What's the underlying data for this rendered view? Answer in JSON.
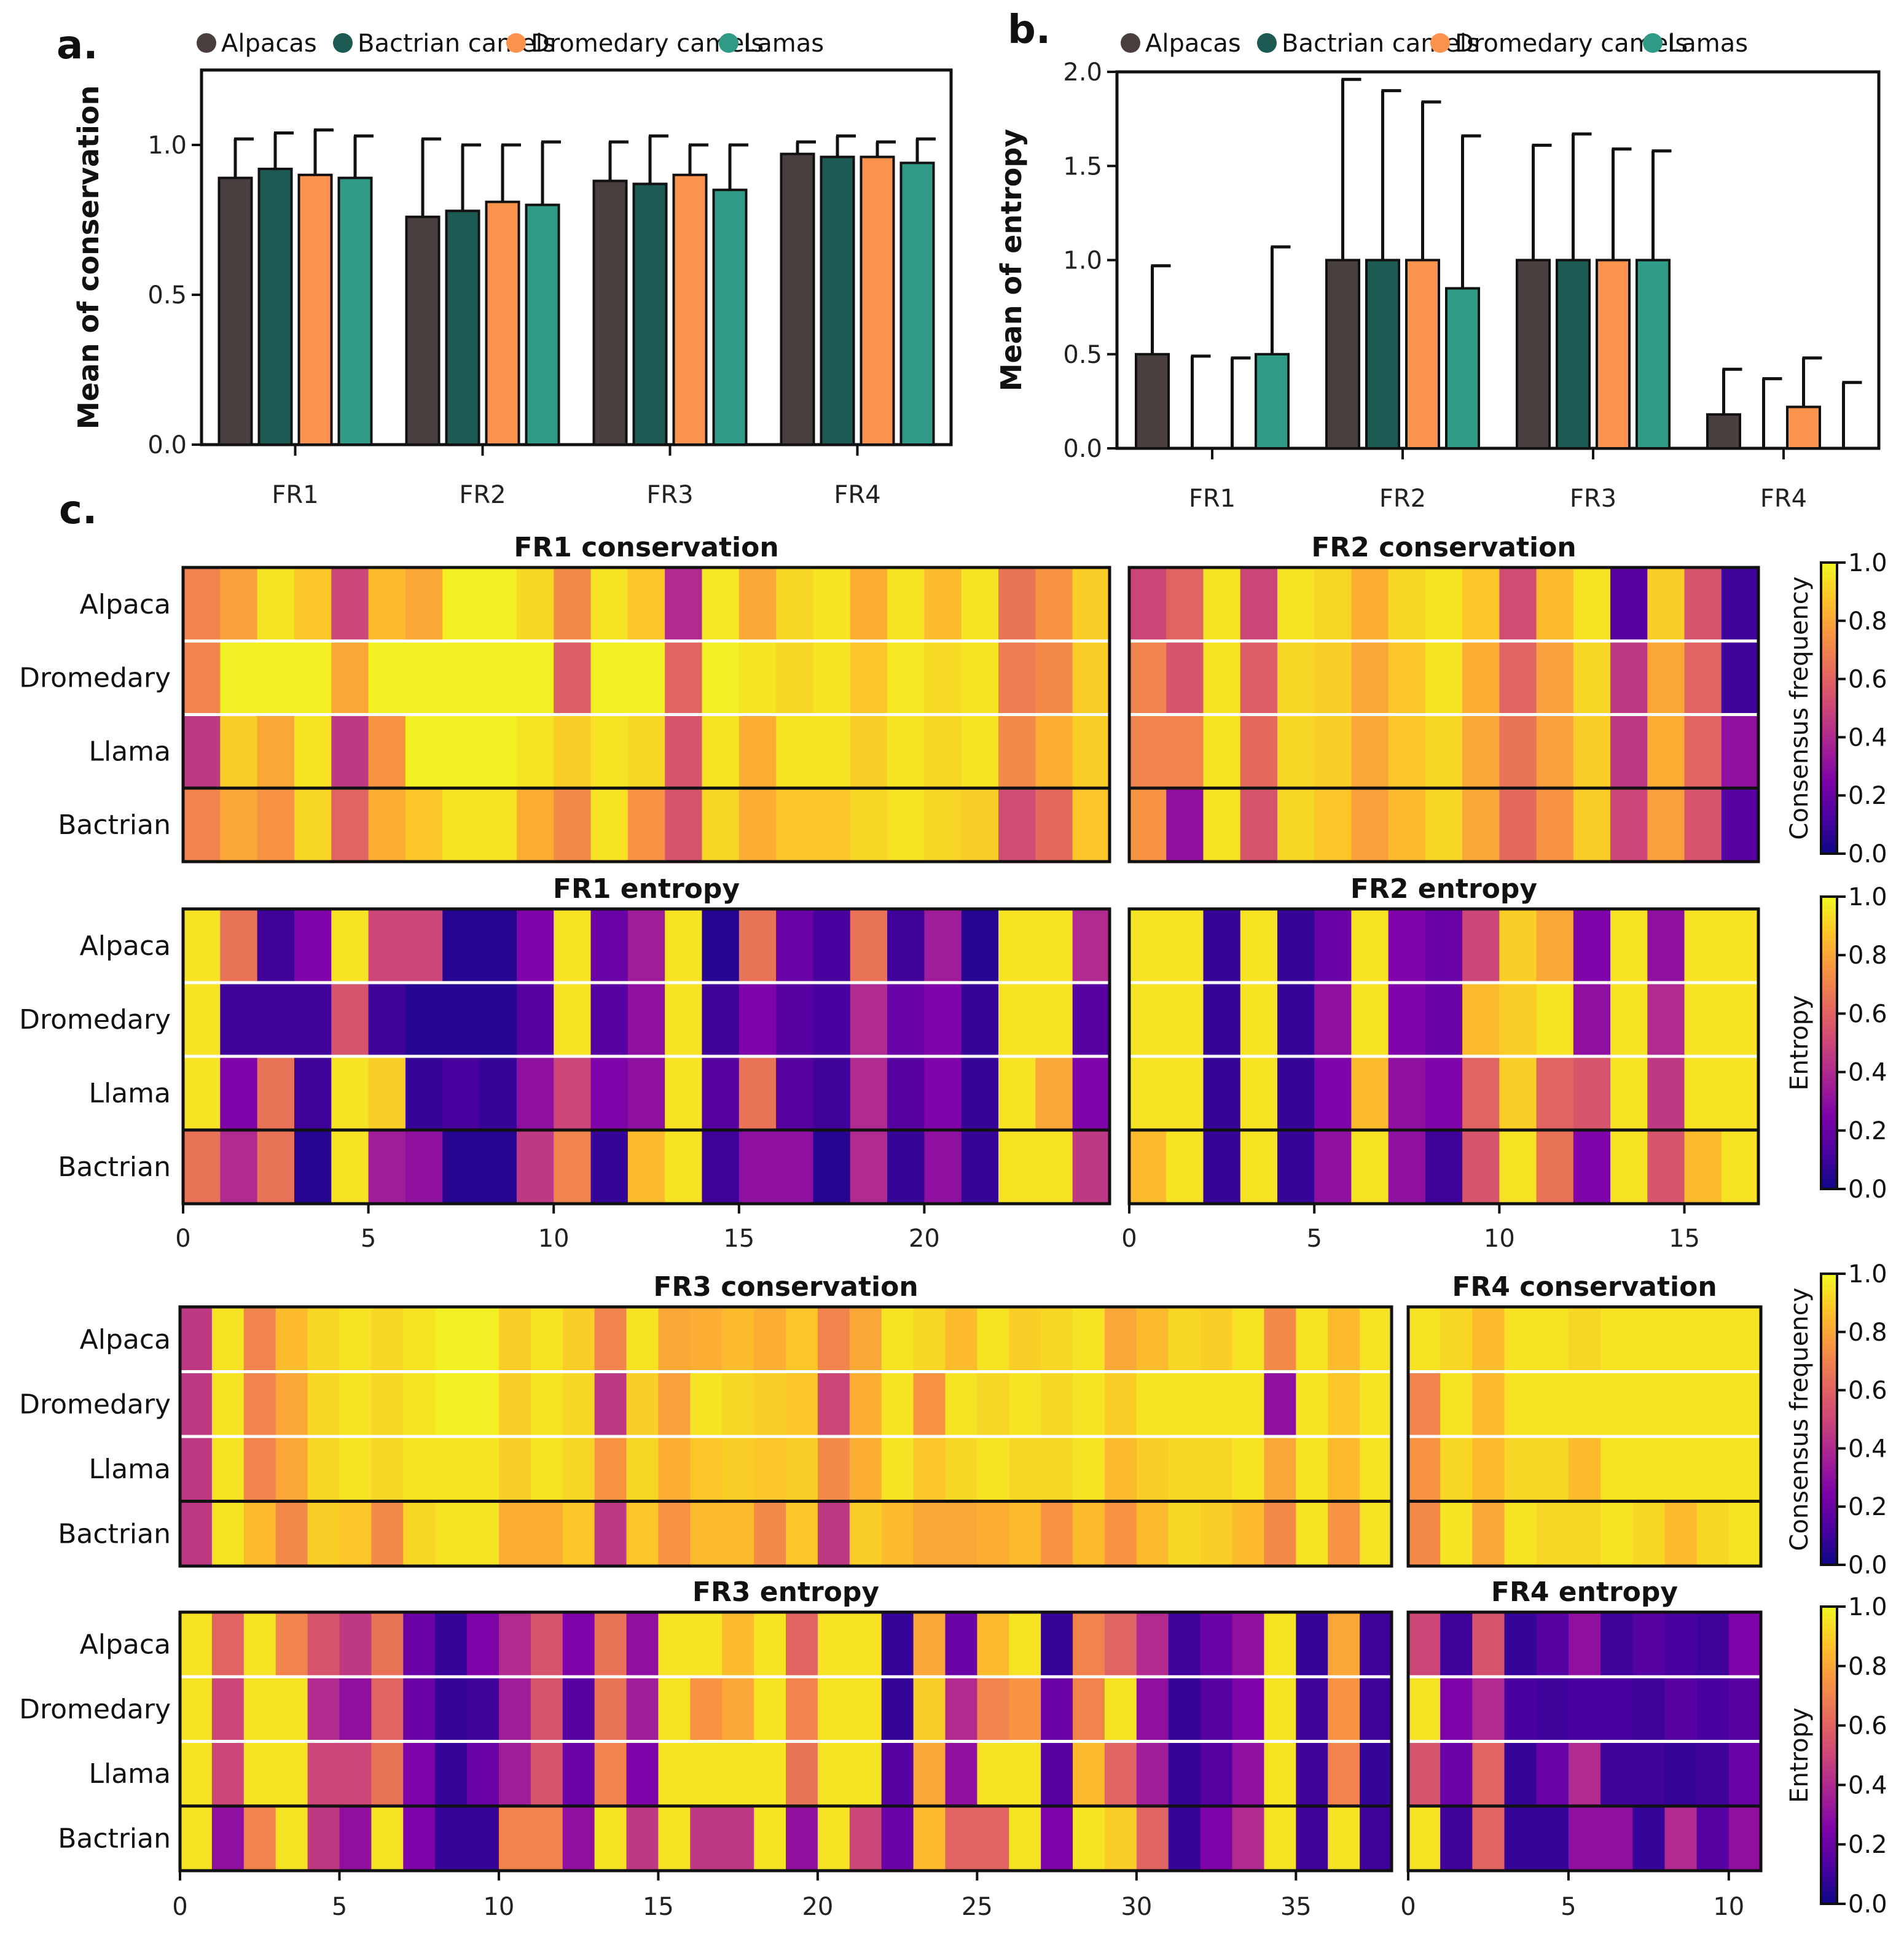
{
  "panel_labels": {
    "a": "a.",
    "b": "b.",
    "c": "c."
  },
  "colors": {
    "Alpacas": "#4a3f3f",
    "Bactrian camels": "#1d5a53",
    "Dromedary camels": "#fb934d",
    "Lamas": "#2f9a86"
  },
  "colormap": "plasma",
  "chart_data": [
    {
      "id": "a",
      "type": "bar",
      "title": "",
      "xlabel": "",
      "ylabel": "Mean of conservation",
      "ylim": [
        0,
        1.25
      ],
      "yticks": [
        0.0,
        0.5,
        1.0
      ],
      "categories": [
        "FR1",
        "FR2",
        "FR3",
        "FR4"
      ],
      "series": [
        {
          "name": "Alpacas",
          "values": [
            0.89,
            0.76,
            0.88,
            0.97
          ],
          "errors": [
            0.13,
            0.26,
            0.13,
            0.04
          ]
        },
        {
          "name": "Bactrian camels",
          "values": [
            0.92,
            0.78,
            0.87,
            0.96
          ],
          "errors": [
            0.12,
            0.22,
            0.16,
            0.07
          ]
        },
        {
          "name": "Dromedary camels",
          "values": [
            0.9,
            0.81,
            0.9,
            0.96
          ],
          "errors": [
            0.15,
            0.19,
            0.1,
            0.05
          ]
        },
        {
          "name": "Lamas",
          "values": [
            0.89,
            0.8,
            0.85,
            0.94
          ],
          "errors": [
            0.14,
            0.21,
            0.15,
            0.08
          ]
        }
      ]
    },
    {
      "id": "b",
      "type": "bar",
      "title": "",
      "xlabel": "",
      "ylabel": "Mean of entropy",
      "ylim": [
        0,
        2.0
      ],
      "yticks": [
        0.0,
        0.5,
        1.0,
        1.5,
        2.0
      ],
      "categories": [
        "FR1",
        "FR2",
        "FR3",
        "FR4"
      ],
      "series": [
        {
          "name": "Alpacas",
          "values": [
            0.5,
            1.0,
            1.0,
            0.18
          ],
          "errors": [
            0.47,
            0.96,
            0.61,
            0.24
          ]
        },
        {
          "name": "Bactrian camels",
          "values": [
            0.0,
            1.0,
            1.0,
            0.0
          ],
          "errors": [
            0.49,
            0.9,
            0.67,
            0.37
          ]
        },
        {
          "name": "Dromedary camels",
          "values": [
            0.0,
            1.0,
            1.0,
            0.22
          ],
          "errors": [
            0.48,
            0.84,
            0.59,
            0.26
          ]
        },
        {
          "name": "Lamas",
          "values": [
            0.5,
            0.85,
            1.0,
            0.0
          ],
          "errors": [
            0.57,
            0.81,
            0.58,
            0.35
          ]
        }
      ]
    },
    {
      "id": "c-fr1-conservation",
      "type": "heatmap",
      "title": "FR1 conservation",
      "rows": [
        "Alpaca",
        "Dromedary",
        "Llama",
        "Bactrian"
      ],
      "values": [
        [
          0.7,
          0.78,
          0.95,
          0.88,
          0.5,
          0.85,
          0.8,
          0.98,
          0.98,
          0.92,
          0.72,
          0.95,
          0.88,
          0.4,
          0.96,
          0.8,
          0.92,
          0.95,
          0.82,
          0.95,
          0.85,
          0.95,
          0.65,
          0.75,
          0.9
        ],
        [
          0.7,
          0.98,
          0.98,
          0.98,
          0.8,
          0.98,
          0.98,
          0.98,
          0.98,
          0.98,
          0.58,
          0.98,
          0.98,
          0.6,
          0.98,
          0.95,
          0.92,
          0.95,
          0.88,
          0.96,
          0.93,
          0.95,
          0.68,
          0.72,
          0.9
        ],
        [
          0.45,
          0.9,
          0.8,
          0.95,
          0.45,
          0.75,
          0.98,
          0.98,
          0.98,
          0.95,
          0.9,
          0.95,
          0.92,
          0.55,
          0.95,
          0.82,
          0.95,
          0.95,
          0.9,
          0.95,
          0.92,
          0.95,
          0.72,
          0.82,
          0.9
        ],
        [
          0.7,
          0.8,
          0.75,
          0.92,
          0.6,
          0.82,
          0.88,
          0.95,
          0.95,
          0.82,
          0.72,
          0.95,
          0.75,
          0.55,
          0.92,
          0.82,
          0.88,
          0.88,
          0.92,
          0.95,
          0.92,
          0.9,
          0.52,
          0.62,
          0.88
        ]
      ],
      "colorbar_label": "Consensus frequency",
      "xticks": [
        0,
        5,
        10,
        15,
        20
      ],
      "vmin": 0.0,
      "vmax": 1.0,
      "colorbar_ticks": [
        "0.0",
        "0.2",
        "0.4",
        "0.6",
        "0.8",
        "1.0"
      ]
    },
    {
      "id": "c-fr2-conservation",
      "type": "heatmap",
      "title": "FR2 conservation",
      "rows": [
        "Alpaca",
        "Dromedary",
        "Llama",
        "Bactrian"
      ],
      "values": [
        [
          0.5,
          0.6,
          0.95,
          0.5,
          0.95,
          0.92,
          0.82,
          0.92,
          0.95,
          0.88,
          0.52,
          0.85,
          0.95,
          0.15,
          0.9,
          0.55,
          0.1
        ],
        [
          0.7,
          0.55,
          0.95,
          0.58,
          0.92,
          0.9,
          0.8,
          0.88,
          0.95,
          0.82,
          0.6,
          0.78,
          0.92,
          0.45,
          0.8,
          0.6,
          0.1
        ],
        [
          0.7,
          0.7,
          0.95,
          0.62,
          0.92,
          0.9,
          0.8,
          0.88,
          0.92,
          0.8,
          0.65,
          0.78,
          0.9,
          0.45,
          0.82,
          0.6,
          0.3
        ],
        [
          0.75,
          0.3,
          0.95,
          0.55,
          0.92,
          0.88,
          0.78,
          0.85,
          0.92,
          0.8,
          0.62,
          0.75,
          0.9,
          0.5,
          0.78,
          0.55,
          0.15
        ]
      ],
      "colorbar_label": "Consensus frequency",
      "xticks": [
        0,
        5,
        10,
        15
      ],
      "vmin": 0.0,
      "vmax": 1.0
    },
    {
      "id": "c-fr1-entropy",
      "type": "heatmap",
      "title": "FR1 entropy",
      "rows": [
        "Alpaca",
        "Dromedary",
        "Llama",
        "Bactrian"
      ],
      "values": [
        [
          0.95,
          0.65,
          0.1,
          0.25,
          0.95,
          0.5,
          0.5,
          0.05,
          0.05,
          0.25,
          0.95,
          0.2,
          0.35,
          0.95,
          0.05,
          0.65,
          0.2,
          0.12,
          0.65,
          0.1,
          0.35,
          0.05,
          0.95,
          0.95,
          0.4
        ],
        [
          0.95,
          0.1,
          0.1,
          0.1,
          0.55,
          0.1,
          0.05,
          0.05,
          0.05,
          0.15,
          0.95,
          0.15,
          0.3,
          0.95,
          0.1,
          0.25,
          0.15,
          0.12,
          0.4,
          0.2,
          0.25,
          0.08,
          0.95,
          0.95,
          0.15
        ],
        [
          0.95,
          0.25,
          0.65,
          0.1,
          0.95,
          0.9,
          0.08,
          0.12,
          0.08,
          0.3,
          0.5,
          0.25,
          0.3,
          0.95,
          0.15,
          0.65,
          0.15,
          0.1,
          0.4,
          0.15,
          0.25,
          0.08,
          0.95,
          0.8,
          0.25
        ],
        [
          0.65,
          0.4,
          0.65,
          0.05,
          0.95,
          0.35,
          0.3,
          0.05,
          0.05,
          0.45,
          0.7,
          0.08,
          0.85,
          0.95,
          0.1,
          0.3,
          0.3,
          0.05,
          0.4,
          0.08,
          0.3,
          0.08,
          0.95,
          0.95,
          0.45
        ]
      ],
      "colorbar_label": "Entropy",
      "xticks": [
        0,
        5,
        10,
        15,
        20
      ],
      "vmin": 0.0,
      "vmax": 1.0
    },
    {
      "id": "c-fr2-entropy",
      "type": "heatmap",
      "title": "FR2 entropy",
      "rows": [
        "Alpaca",
        "Dromedary",
        "Llama",
        "Bactrian"
      ],
      "values": [
        [
          0.95,
          0.95,
          0.08,
          0.95,
          0.08,
          0.2,
          0.95,
          0.25,
          0.2,
          0.5,
          0.9,
          0.8,
          0.25,
          0.95,
          0.3,
          0.95,
          0.95
        ],
        [
          0.95,
          0.95,
          0.08,
          0.95,
          0.08,
          0.3,
          0.95,
          0.25,
          0.2,
          0.85,
          0.9,
          0.95,
          0.3,
          0.95,
          0.4,
          0.95,
          0.95
        ],
        [
          0.95,
          0.95,
          0.08,
          0.95,
          0.08,
          0.25,
          0.85,
          0.3,
          0.25,
          0.6,
          0.9,
          0.6,
          0.55,
          0.95,
          0.45,
          0.95,
          0.95
        ],
        [
          0.85,
          0.95,
          0.08,
          0.95,
          0.08,
          0.3,
          0.95,
          0.3,
          0.1,
          0.55,
          0.95,
          0.65,
          0.25,
          0.95,
          0.55,
          0.85,
          0.95
        ]
      ],
      "colorbar_label": "Entropy",
      "xticks": [
        0,
        5,
        10,
        15
      ],
      "vmin": 0.0,
      "vmax": 1.0
    },
    {
      "id": "c-fr3-conservation",
      "type": "heatmap",
      "title": "FR3 conservation",
      "rows": [
        "Alpaca",
        "Dromedary",
        "Llama",
        "Bactrian"
      ],
      "values": [
        [
          0.45,
          0.95,
          0.7,
          0.85,
          0.92,
          0.95,
          0.92,
          0.95,
          0.98,
          0.98,
          0.9,
          0.95,
          0.9,
          0.7,
          0.95,
          0.8,
          0.82,
          0.85,
          0.82,
          0.88,
          0.7,
          0.8,
          0.95,
          0.92,
          0.85,
          0.95,
          0.9,
          0.92,
          0.95,
          0.8,
          0.85,
          0.92,
          0.9,
          0.95,
          0.72,
          0.95,
          0.85,
          0.95
        ],
        [
          0.45,
          0.95,
          0.7,
          0.8,
          0.92,
          0.95,
          0.92,
          0.95,
          0.98,
          0.98,
          0.9,
          0.95,
          0.92,
          0.45,
          0.9,
          0.78,
          0.95,
          0.92,
          0.9,
          0.88,
          0.5,
          0.82,
          0.95,
          0.75,
          0.95,
          0.92,
          0.95,
          0.92,
          0.95,
          0.9,
          0.95,
          0.95,
          0.95,
          0.95,
          0.3,
          0.95,
          0.88,
          0.95
        ],
        [
          0.45,
          0.95,
          0.7,
          0.8,
          0.92,
          0.95,
          0.92,
          0.95,
          0.95,
          0.95,
          0.9,
          0.95,
          0.92,
          0.75,
          0.92,
          0.82,
          0.88,
          0.9,
          0.88,
          0.9,
          0.72,
          0.82,
          0.95,
          0.88,
          0.92,
          0.95,
          0.92,
          0.92,
          0.95,
          0.85,
          0.9,
          0.92,
          0.92,
          0.95,
          0.8,
          0.95,
          0.85,
          0.95
        ],
        [
          0.45,
          0.95,
          0.85,
          0.72,
          0.9,
          0.88,
          0.72,
          0.92,
          0.95,
          0.95,
          0.82,
          0.82,
          0.88,
          0.45,
          0.88,
          0.75,
          0.85,
          0.85,
          0.72,
          0.88,
          0.45,
          0.9,
          0.85,
          0.8,
          0.8,
          0.82,
          0.85,
          0.75,
          0.85,
          0.75,
          0.85,
          0.92,
          0.9,
          0.85,
          0.72,
          0.95,
          0.75,
          0.95
        ]
      ],
      "colorbar_label": "Consensus frequency",
      "xticks": [
        0,
        5,
        10,
        15,
        20,
        25,
        30,
        35
      ],
      "vmin": 0.0,
      "vmax": 1.0,
      "colorbar_ticks": [
        "0.0",
        "0.2",
        "0.4",
        "0.6",
        "0.8",
        "1.0"
      ]
    },
    {
      "id": "c-fr4-conservation",
      "type": "heatmap",
      "title": "FR4 conservation",
      "rows": [
        "Alpaca",
        "Dromedary",
        "Llama",
        "Bactrian"
      ],
      "values": [
        [
          0.95,
          0.92,
          0.85,
          0.95,
          0.95,
          0.92,
          0.95,
          0.95,
          0.95,
          0.95,
          0.95
        ],
        [
          0.7,
          0.95,
          0.85,
          0.95,
          0.95,
          0.95,
          0.95,
          0.95,
          0.95,
          0.95,
          0.95
        ],
        [
          0.75,
          0.92,
          0.85,
          0.92,
          0.92,
          0.85,
          0.95,
          0.95,
          0.95,
          0.95,
          0.95
        ],
        [
          0.72,
          0.95,
          0.8,
          0.95,
          0.92,
          0.92,
          0.95,
          0.92,
          0.85,
          0.92,
          0.95
        ]
      ],
      "colorbar_label": "Consensus frequency",
      "xticks": [
        0,
        5,
        10
      ],
      "vmin": 0.0,
      "vmax": 1.0
    },
    {
      "id": "c-fr3-entropy",
      "type": "heatmap",
      "title": "FR3 entropy",
      "rows": [
        "Alpaca",
        "Dromedary",
        "Llama",
        "Bactrian"
      ],
      "values": [
        [
          0.95,
          0.6,
          0.95,
          0.7,
          0.55,
          0.45,
          0.65,
          0.2,
          0.08,
          0.25,
          0.4,
          0.55,
          0.25,
          0.65,
          0.3,
          0.95,
          0.95,
          0.85,
          0.95,
          0.6,
          0.95,
          0.95,
          0.08,
          0.8,
          0.2,
          0.85,
          0.95,
          0.08,
          0.7,
          0.6,
          0.4,
          0.1,
          0.2,
          0.3,
          0.95,
          0.08,
          0.8,
          0.1
        ],
        [
          0.95,
          0.5,
          0.95,
          0.95,
          0.4,
          0.3,
          0.6,
          0.2,
          0.08,
          0.1,
          0.35,
          0.55,
          0.15,
          0.65,
          0.35,
          0.95,
          0.75,
          0.8,
          0.95,
          0.7,
          0.95,
          0.95,
          0.08,
          0.9,
          0.4,
          0.7,
          0.75,
          0.2,
          0.7,
          0.95,
          0.3,
          0.08,
          0.15,
          0.25,
          0.95,
          0.1,
          0.75,
          0.1
        ],
        [
          0.95,
          0.5,
          0.95,
          0.95,
          0.5,
          0.5,
          0.65,
          0.25,
          0.08,
          0.2,
          0.35,
          0.55,
          0.2,
          0.7,
          0.25,
          0.95,
          0.95,
          0.95,
          0.95,
          0.65,
          0.95,
          0.95,
          0.15,
          0.8,
          0.3,
          0.95,
          0.95,
          0.15,
          0.85,
          0.6,
          0.35,
          0.08,
          0.15,
          0.3,
          0.95,
          0.1,
          0.7,
          0.08
        ],
        [
          0.95,
          0.3,
          0.7,
          0.95,
          0.45,
          0.3,
          0.95,
          0.25,
          0.08,
          0.08,
          0.7,
          0.7,
          0.3,
          0.95,
          0.45,
          0.95,
          0.45,
          0.45,
          0.95,
          0.3,
          0.95,
          0.5,
          0.2,
          0.85,
          0.6,
          0.6,
          0.95,
          0.25,
          0.95,
          0.9,
          0.6,
          0.08,
          0.25,
          0.4,
          0.95,
          0.1,
          0.95,
          0.1
        ]
      ],
      "colorbar_label": "Entropy",
      "xticks": [
        0,
        5,
        10,
        15,
        20,
        25,
        30,
        35
      ],
      "vmin": 0.0,
      "vmax": 1.0
    },
    {
      "id": "c-fr4-entropy",
      "type": "heatmap",
      "title": "FR4 entropy",
      "rows": [
        "Alpaca",
        "Dromedary",
        "Llama",
        "Bactrian"
      ],
      "values": [
        [
          0.5,
          0.1,
          0.55,
          0.08,
          0.15,
          0.3,
          0.1,
          0.15,
          0.12,
          0.1,
          0.25
        ],
        [
          0.95,
          0.25,
          0.4,
          0.12,
          0.1,
          0.12,
          0.12,
          0.1,
          0.15,
          0.12,
          0.15
        ],
        [
          0.55,
          0.2,
          0.6,
          0.08,
          0.2,
          0.4,
          0.1,
          0.1,
          0.08,
          0.1,
          0.2
        ],
        [
          0.95,
          0.1,
          0.6,
          0.08,
          0.08,
          0.3,
          0.3,
          0.08,
          0.4,
          0.15,
          0.3
        ]
      ],
      "colorbar_label": "Entropy",
      "xticks": [
        0,
        5,
        10
      ],
      "vmin": 0.0,
      "vmax": 1.0
    }
  ]
}
